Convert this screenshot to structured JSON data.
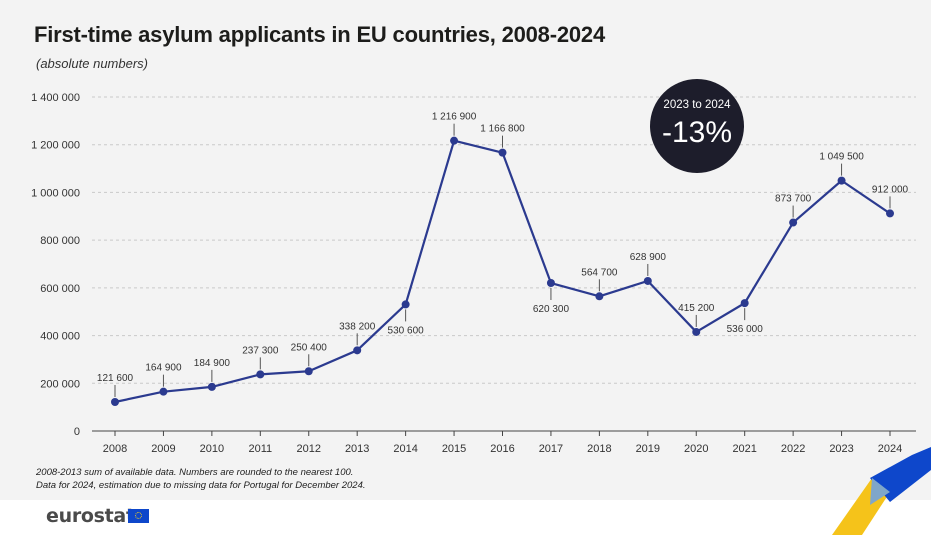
{
  "title": "First-time asylum applicants in EU countries, 2008-2024",
  "subtitle": "(absolute numbers)",
  "badge": {
    "period": "2023 to 2024",
    "change": "-13%"
  },
  "notes": [
    "2008-2013 sum of available data. Numbers are rounded to the nearest 100.",
    "Data for 2024, estimation due to missing data for Portugal for December 2024."
  ],
  "logo_text": "eurostat",
  "colors": {
    "line": "#2b3a8f",
    "badge": "#1d1d2b",
    "grid": "#c9c9c9",
    "panel": "#f3f3f3"
  },
  "chart_data": {
    "type": "line",
    "categories": [
      "2008",
      "2009",
      "2010",
      "2011",
      "2012",
      "2013",
      "2014",
      "2015",
      "2016",
      "2017",
      "2018",
      "2019",
      "2020",
      "2021",
      "2022",
      "2023",
      "2024"
    ],
    "values": [
      121600,
      164900,
      184900,
      237300,
      250400,
      338200,
      530600,
      1216900,
      1166800,
      620300,
      564700,
      628900,
      415200,
      536000,
      873700,
      1049500,
      912000
    ],
    "labels": [
      "121 600",
      "164 900",
      "184 900",
      "237 300",
      "250 400",
      "338 200",
      "530 600",
      "1 216 900",
      "1 166 800",
      "620 300",
      "564 700",
      "628 900",
      "415 200",
      "536 000",
      "873 700",
      "1 049 500",
      "912 000"
    ],
    "label_side": [
      "above",
      "above",
      "above",
      "above",
      "above",
      "above",
      "below",
      "above",
      "above",
      "below",
      "above",
      "above",
      "above",
      "below",
      "above",
      "above",
      "above"
    ],
    "yticks": [
      0,
      200000,
      400000,
      600000,
      800000,
      1000000,
      1200000,
      1400000
    ],
    "ytick_labels": [
      "0",
      "200 000",
      "400 000",
      "600 000",
      "800 000",
      "1 000 000",
      "1 200 000",
      "1 400 000"
    ],
    "ylim": [
      0,
      1400000
    ],
    "grid": true,
    "legend": "none"
  }
}
